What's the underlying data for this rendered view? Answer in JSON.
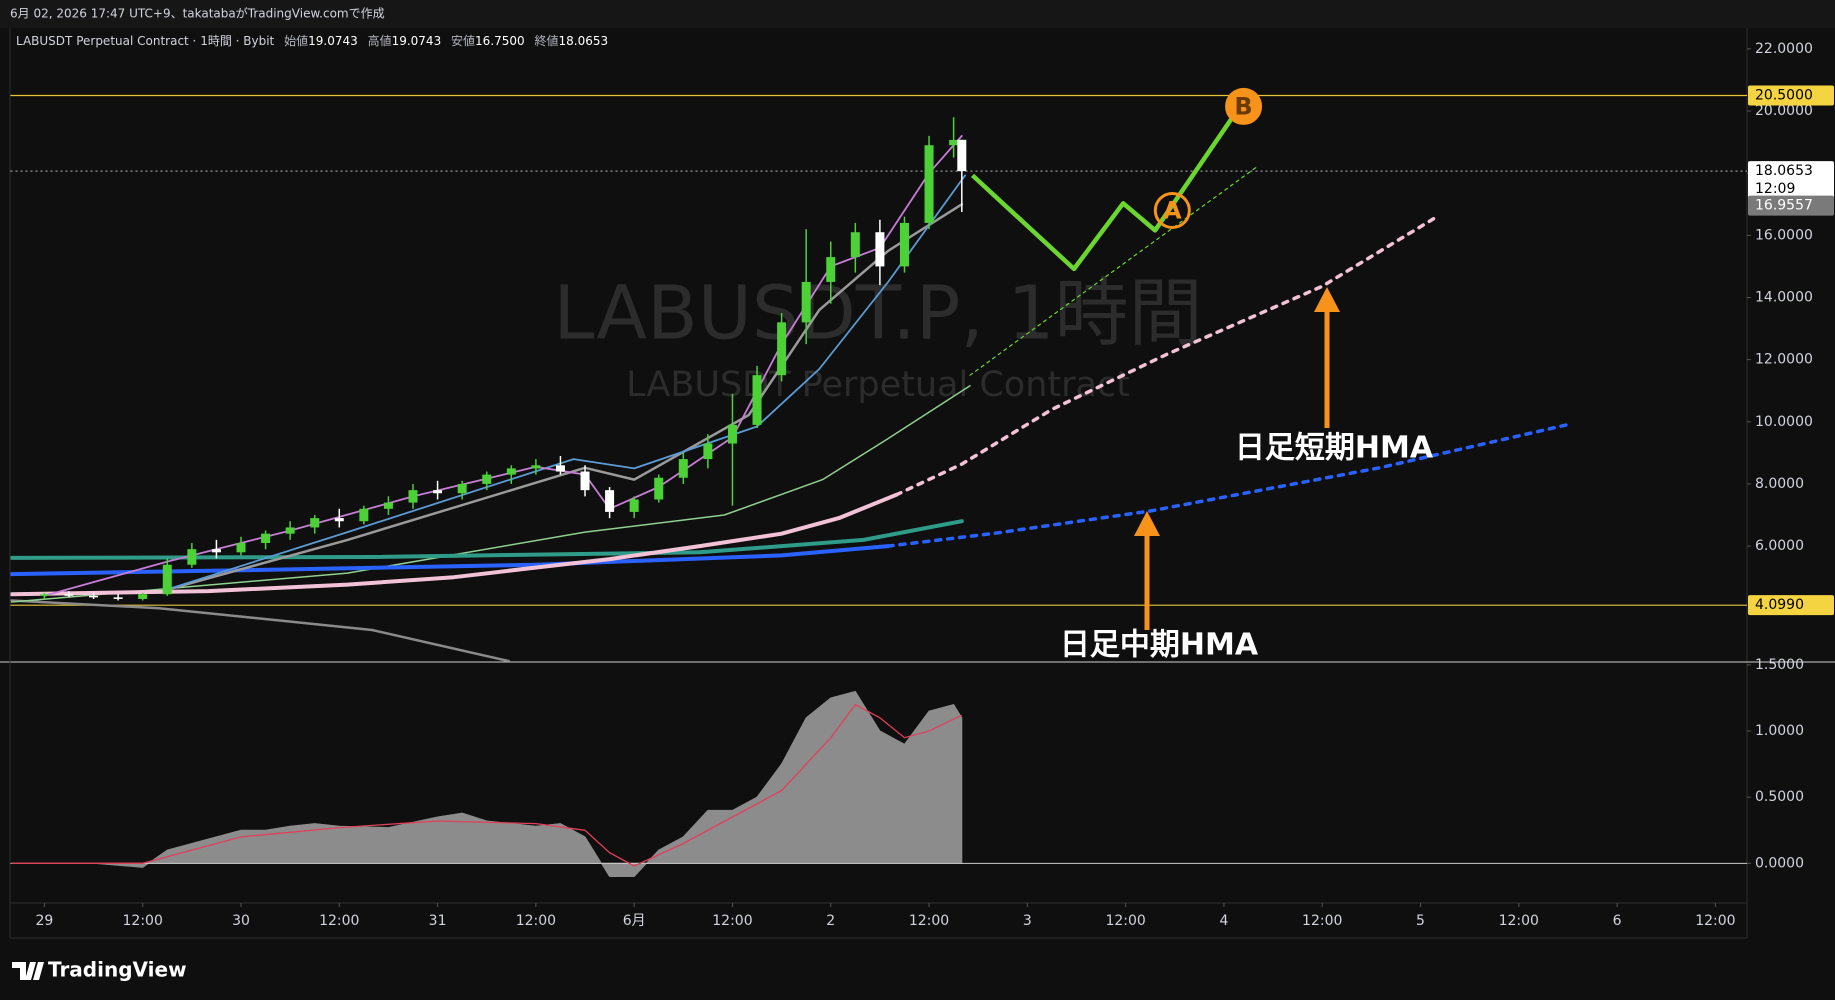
{
  "header": {
    "credit": "6月 02, 2026 17:47 UTC+9、takatabaがTradingView.comで作成"
  },
  "legend": {
    "symbol": "LABUSDT Perpetual Contract · 1時間 · Bybit",
    "ohlc": [
      {
        "label": "始値",
        "value": "19.0743"
      },
      {
        "label": "高値",
        "value": "19.0743"
      },
      {
        "label": "安値",
        "value": "16.7500"
      },
      {
        "label": "終値",
        "value": "18.0653"
      }
    ]
  },
  "watermark": {
    "title": "LABUSDT.P, 1時間",
    "subtitle": "LABUSDT Perpetual Contract"
  },
  "annotations": {
    "short_hma": "日足短期HMA",
    "mid_hma": "日足中期HMA"
  },
  "footer": {
    "brand": "TradingView"
  },
  "chart_data": [
    {
      "type": "candlestick",
      "up_color": "#4cd137",
      "down_color": "#ffffff",
      "x": [
        0,
        3,
        6,
        9,
        12,
        15,
        18,
        21,
        24,
        27,
        30,
        33,
        36,
        39,
        42,
        45,
        48,
        51,
        54,
        57,
        60,
        63,
        66,
        69,
        72,
        75,
        78,
        81,
        84,
        87,
        90,
        93,
        96,
        99,
        102,
        105,
        108,
        111,
        112
      ],
      "open": [
        4.4,
        4.45,
        4.4,
        4.35,
        4.3,
        4.45,
        5.4,
        5.9,
        5.8,
        6.1,
        6.4,
        6.6,
        6.9,
        6.8,
        7.2,
        7.4,
        7.8,
        7.7,
        8.0,
        8.3,
        8.5,
        8.6,
        8.4,
        7.8,
        7.1,
        7.5,
        8.2,
        8.8,
        9.3,
        9.9,
        11.5,
        13.2,
        14.5,
        15.3,
        16.1,
        15.0,
        16.4,
        18.9,
        19.0743
      ],
      "high": [
        4.5,
        4.55,
        4.5,
        4.45,
        4.5,
        5.6,
        6.1,
        6.2,
        6.3,
        6.5,
        6.8,
        7.0,
        7.2,
        7.3,
        7.6,
        8.0,
        8.1,
        8.1,
        8.4,
        8.6,
        8.8,
        8.9,
        8.6,
        7.9,
        7.6,
        8.3,
        9.0,
        9.6,
        10.9,
        11.8,
        13.5,
        16.2,
        15.8,
        16.4,
        16.5,
        16.6,
        19.2,
        19.8,
        19.0743
      ],
      "low": [
        4.3,
        4.35,
        4.3,
        4.25,
        4.25,
        4.4,
        5.3,
        5.6,
        5.7,
        5.9,
        6.2,
        6.4,
        6.6,
        6.7,
        7.0,
        7.2,
        7.5,
        7.5,
        7.8,
        8.0,
        8.3,
        8.3,
        7.6,
        6.9,
        6.9,
        7.4,
        8.0,
        8.5,
        7.3,
        9.8,
        11.3,
        12.5,
        13.8,
        14.8,
        14.4,
        14.8,
        16.2,
        18.5,
        16.75
      ],
      "close": [
        4.45,
        4.4,
        4.35,
        4.3,
        4.45,
        5.4,
        5.9,
        5.8,
        6.1,
        6.4,
        6.6,
        6.9,
        6.8,
        7.2,
        7.4,
        7.8,
        7.7,
        8.0,
        8.3,
        8.5,
        8.6,
        8.4,
        7.8,
        7.1,
        7.5,
        8.2,
        8.8,
        9.3,
        9.9,
        11.5,
        13.2,
        14.5,
        15.3,
        16.1,
        15.0,
        16.4,
        18.9,
        19.07,
        18.0653
      ],
      "lines": [
        {
          "color": "#8a8a8a",
          "width": 2.5,
          "x": [
            -4,
            14,
            40,
            56.7
          ],
          "values": [
            4.25,
            4.0,
            3.3,
            2.3
          ]
        },
        {
          "color": "#8fd18f",
          "width": 1.5,
          "x": [
            -4,
            37,
            66,
            83,
            95,
            103,
            113
          ],
          "values": [
            4.2,
            5.13,
            6.45,
            7.0,
            8.14,
            9.46,
            11.16
          ]
        },
        {
          "color": "#2e9c88",
          "width": 4,
          "x": [
            -4,
            40,
            80,
            100,
            112
          ],
          "values": [
            5.62,
            5.65,
            5.8,
            6.2,
            6.8
          ]
        },
        {
          "color": "#2962ff",
          "width": 4,
          "x": [
            -4,
            30,
            60,
            90,
            103
          ],
          "values": [
            5.1,
            5.25,
            5.4,
            5.7,
            6.0
          ]
        },
        {
          "color": "#2962ff",
          "width": 3.5,
          "dash": "5 7",
          "x": [
            103,
            116,
            135,
            163,
            186
          ],
          "values": [
            6.0,
            6.41,
            7.13,
            8.52,
            9.91
          ]
        },
        {
          "color": "#f4c2d7",
          "width": 4,
          "x": [
            -4,
            20,
            37,
            50,
            59,
            69,
            80,
            90,
            97,
            104
          ],
          "values": [
            4.45,
            4.55,
            4.76,
            5.0,
            5.28,
            5.58,
            6.0,
            6.4,
            6.9,
            7.65
          ]
        },
        {
          "color": "#f4c2d7",
          "width": 3.5,
          "dash": "5 7",
          "x": [
            104,
            112,
            123,
            137,
            156,
            170
          ],
          "values": [
            7.65,
            8.64,
            10.4,
            12.17,
            14.36,
            16.6
          ]
        },
        {
          "color": "#9a9a9a",
          "width": 2.5,
          "x": [
            14.6,
            37,
            66,
            72,
            86,
            94.6,
            103,
            112
          ],
          "values": [
            4.57,
            6.2,
            8.52,
            8.14,
            10.22,
            13.6,
            15.5,
            17.0
          ]
        },
        {
          "color": "#5b9bd5",
          "width": 1.8,
          "x": [
            14.6,
            37,
            64.6,
            72,
            87,
            94.6,
            103,
            112.4
          ],
          "values": [
            4.57,
            6.45,
            8.8,
            8.5,
            9.85,
            11.7,
            14.5,
            17.93
          ]
        },
        {
          "color": "#c77dd6",
          "width": 1.8,
          "x": [
            0,
            15,
            30,
            45,
            60,
            66,
            69,
            75,
            84,
            90,
            96,
            102,
            108,
            112
          ],
          "values": [
            4.4,
            5.5,
            6.5,
            7.6,
            8.55,
            8.3,
            7.2,
            7.9,
            9.5,
            12.5,
            15.0,
            15.6,
            18.0,
            19.2
          ]
        },
        {
          "color": "#6cd630",
          "width": 1.2,
          "dash": "3 4",
          "x": [
            113,
            148
          ],
          "values": [
            11.5,
            18.2
          ]
        }
      ],
      "scenario": {
        "color": "#6cd630",
        "x": [
          113.3,
          125.7,
          131.7,
          135.6,
          145
        ],
        "values": [
          17.93,
          14.92,
          17.03,
          16.16,
          19.78
        ]
      },
      "markers": [
        {
          "label": "A",
          "x": 137.7,
          "value": 16.8
        },
        {
          "label": "B",
          "x": 146.4,
          "value": 20.15
        }
      ],
      "marker_color": "#f7931a",
      "hlines": [
        {
          "value": 20.5,
          "color": "#e8c33a"
        },
        {
          "value": 4.099,
          "color": "#e8c33a"
        },
        {
          "value": 18.0653,
          "color": "#9a9a9a",
          "dash": "2 3"
        }
      ],
      "price_labels": [
        {
          "value": 20.5,
          "label": "20.5000",
          "bg": "#f5d442",
          "fg": "#000000"
        },
        {
          "value": 18.0653,
          "label": "18.0653",
          "sub": "12:09",
          "bg": "#ffffff",
          "fg": "#000000"
        },
        {
          "value": 16.9557,
          "label": "16.9557",
          "bg": "#7a7a7a",
          "fg": "#ffffff"
        },
        {
          "value": 4.099,
          "label": "4.0990",
          "bg": "#f5d442",
          "fg": "#000000"
        }
      ],
      "xlim": [
        -4.14,
        207.86
      ],
      "xticks": [
        {
          "value": 0,
          "label": "29"
        },
        {
          "value": 12,
          "label": "12:00"
        },
        {
          "value": 24,
          "label": "30"
        },
        {
          "value": 36,
          "label": "12:00"
        },
        {
          "value": 48,
          "label": "31"
        },
        {
          "value": 60,
          "label": "12:00"
        },
        {
          "value": 72,
          "label": "6月"
        },
        {
          "value": 84,
          "label": "12:00"
        },
        {
          "value": 96,
          "label": "2"
        },
        {
          "value": 108,
          "label": "12:00"
        },
        {
          "value": 120,
          "label": "3"
        },
        {
          "value": 132,
          "label": "12:00"
        },
        {
          "value": 144,
          "label": "4"
        },
        {
          "value": 156,
          "label": "12:00"
        },
        {
          "value": 168,
          "label": "5"
        },
        {
          "value": 180,
          "label": "12:00"
        },
        {
          "value": 192,
          "label": "6"
        },
        {
          "value": 204,
          "label": "12:00"
        }
      ],
      "ylim": [
        2.27,
        22.64
      ],
      "yticks": [
        {
          "value": 22,
          "label": "22.0000"
        },
        {
          "value": 20,
          "label": "20.0000"
        },
        {
          "value": 18,
          "label": "18.0000"
        },
        {
          "value": 16,
          "label": "16.0000"
        },
        {
          "value": 14,
          "label": "14.0000"
        },
        {
          "value": 12,
          "label": "12.0000"
        },
        {
          "value": 10,
          "label": "10.0000"
        },
        {
          "value": 8,
          "label": "8.0000"
        },
        {
          "value": 6,
          "label": "6.0000"
        }
      ]
    },
    {
      "type": "area",
      "color": "#8c8c8c",
      "x": [
        -4,
        0,
        6,
        12,
        15,
        18,
        21,
        24,
        27,
        30,
        33,
        36,
        42,
        48,
        51,
        54,
        60,
        63,
        66,
        69,
        72,
        75,
        78,
        81,
        84,
        87,
        90,
        93,
        96,
        99,
        102,
        105,
        108,
        111,
        112
      ],
      "values": [
        0.0,
        0.0,
        0.0,
        -0.03,
        0.1,
        0.15,
        0.2,
        0.25,
        0.25,
        0.28,
        0.3,
        0.28,
        0.27,
        0.35,
        0.38,
        0.32,
        0.28,
        0.3,
        0.2,
        -0.1,
        -0.1,
        0.1,
        0.2,
        0.4,
        0.4,
        0.5,
        0.75,
        1.1,
        1.25,
        1.3,
        1.0,
        0.9,
        1.15,
        1.2,
        1.1
      ],
      "signal": {
        "color": "#e0405a",
        "x": [
          -4,
          12,
          18,
          24,
          36,
          48,
          60,
          66,
          69,
          72,
          78,
          84,
          90,
          96,
          99,
          102,
          105,
          108,
          112
        ],
        "values": [
          0.0,
          0.0,
          0.1,
          0.2,
          0.27,
          0.32,
          0.3,
          0.25,
          0.08,
          -0.02,
          0.15,
          0.35,
          0.55,
          0.95,
          1.2,
          1.1,
          0.95,
          1.0,
          1.12
        ]
      },
      "zero_line": {
        "value": 0,
        "color": "#cccccc"
      },
      "xlim": [
        -4.14,
        207.86
      ],
      "ylim": [
        -0.3,
        1.522
      ],
      "yticks": [
        {
          "value": 1.5,
          "label": "1.5000"
        },
        {
          "value": 1.0,
          "label": "1.0000"
        },
        {
          "value": 0.5,
          "label": "0.5000"
        },
        {
          "value": 0,
          "label": "0.0000"
        }
      ]
    }
  ]
}
